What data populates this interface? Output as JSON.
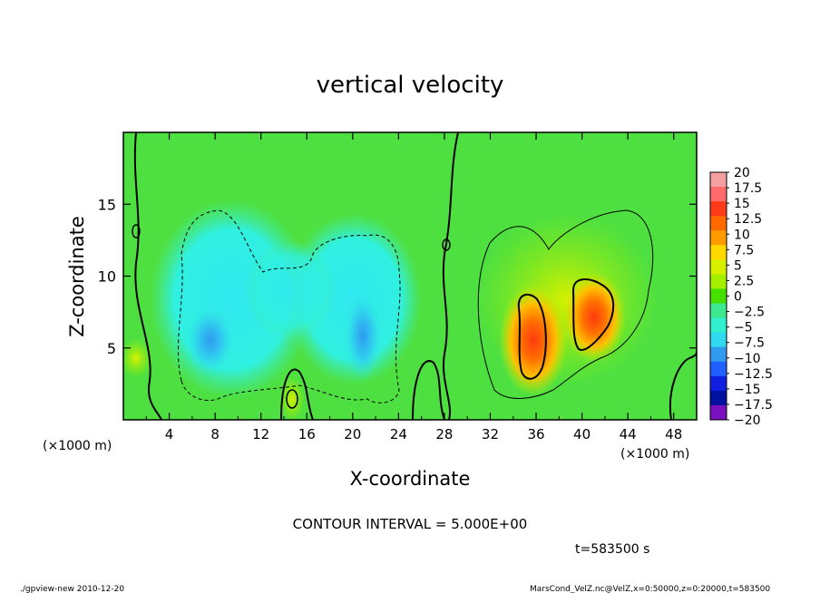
{
  "chart_data": {
    "type": "heatmap",
    "title": "vertical velocity",
    "xlabel": "X-coordinate",
    "ylabel": "Z-coordinate",
    "x_unit_left": "(×1000 m)",
    "x_unit_right": "(×1000 m)",
    "xlim": [
      0,
      50
    ],
    "ylim": [
      0,
      20
    ],
    "x_ticks": [
      "4",
      "8",
      "12",
      "16",
      "20",
      "24",
      "28",
      "32",
      "36",
      "40",
      "44",
      "48"
    ],
    "x_tick_values": [
      4,
      8,
      12,
      16,
      20,
      24,
      28,
      32,
      36,
      40,
      44,
      48
    ],
    "y_ticks": [
      "5",
      "10",
      "15"
    ],
    "y_tick_values": [
      5,
      10,
      15
    ],
    "colorbar": {
      "labels": [
        "20",
        "17.5",
        "15",
        "12.5",
        "10",
        "7.5",
        "5",
        "2.5",
        "0",
        "−2.5",
        "−5",
        "−7.5",
        "−10",
        "−12.5",
        "−15",
        "−17.5",
        "−20"
      ],
      "range": [
        -20,
        20
      ],
      "colors": [
        "#f5a0a0",
        "#ff6a6a",
        "#ff3a1a",
        "#ff6a00",
        "#ff9a00",
        "#ffd800",
        "#d6f000",
        "#a4f000",
        "#46e000",
        "#3de890",
        "#30f0d0",
        "#30d8f0",
        "#2f9af0",
        "#2060ff",
        "#1020e0",
        "#0010a0",
        "#7a10c0"
      ]
    },
    "features": [
      {
        "sign": "negative",
        "x": 7.5,
        "z": 5.8,
        "value": -10
      },
      {
        "sign": "negative",
        "x": 20.5,
        "z": 5.5,
        "value": -10
      },
      {
        "sign": "positive",
        "x": 35.5,
        "z": 6.0,
        "value": 15
      },
      {
        "sign": "positive",
        "x": 40.5,
        "z": 7.0,
        "value": 12.5
      }
    ],
    "contour_interval_text": "CONTOUR INTERVAL = 5.000E+00",
    "time_text": "t=583500 s"
  },
  "footer": {
    "left": "./gpview-new  2010-12-20",
    "right": "MarsCond_VelZ.nc@VelZ,x=0:50000,z=0:20000,t=583500"
  }
}
